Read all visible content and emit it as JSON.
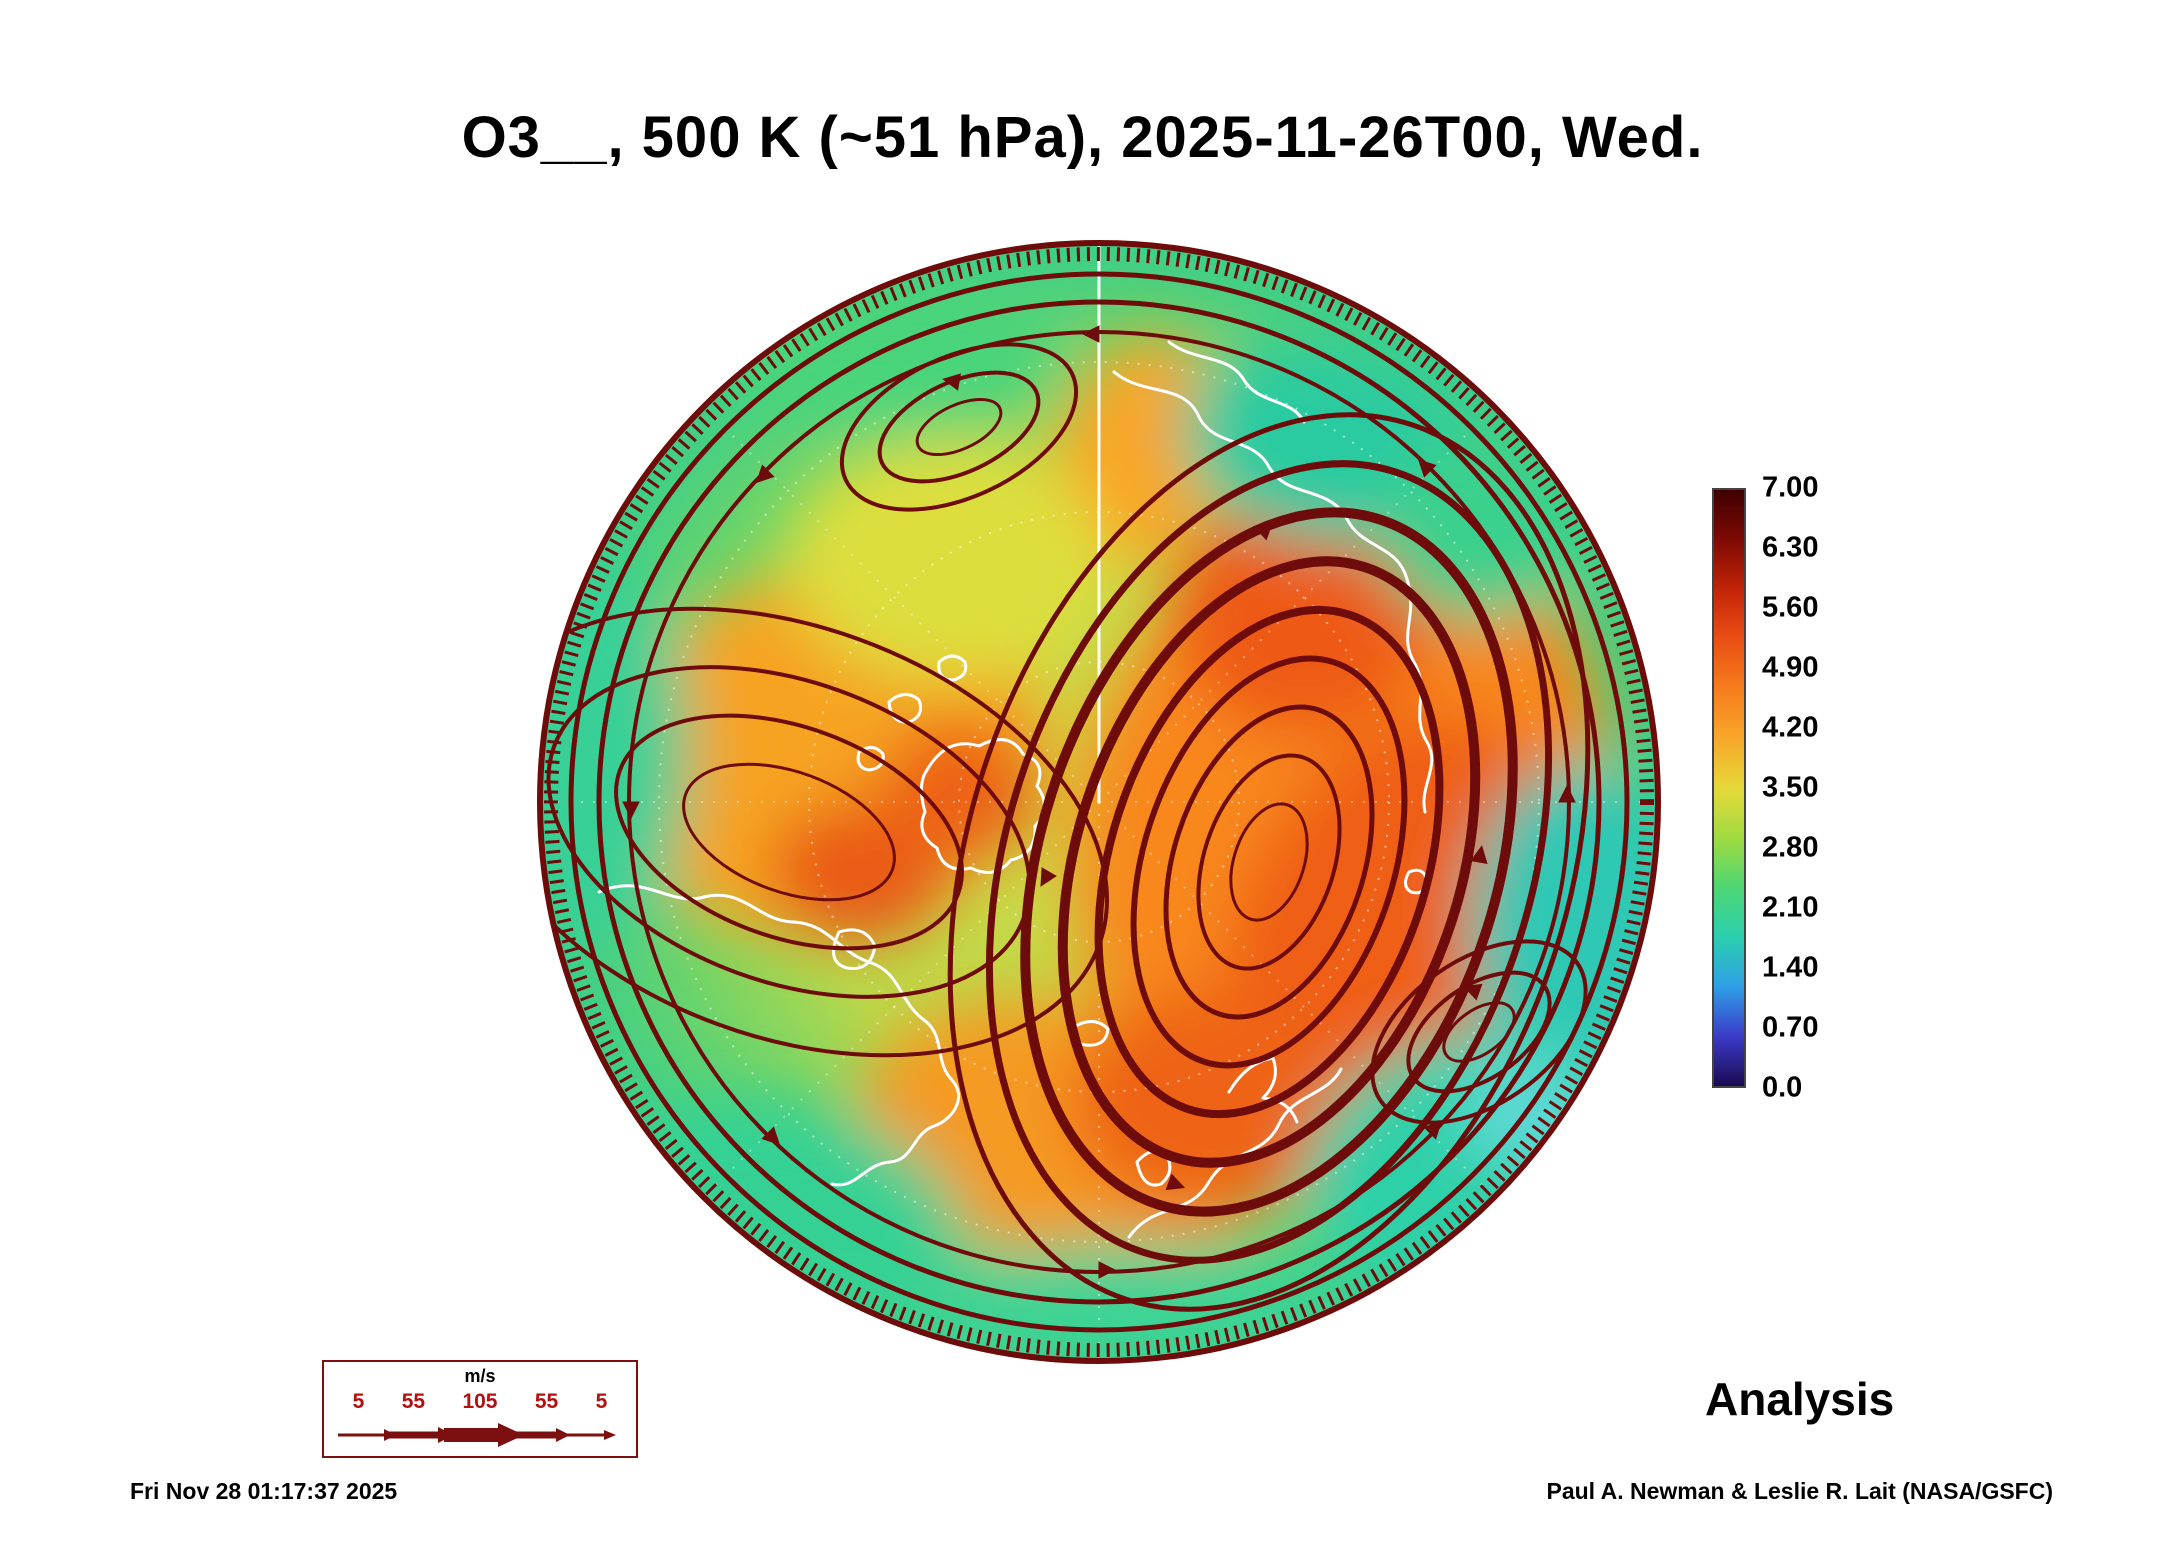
{
  "title": "O3__, 500 K (~51 hPa), 2025-11-26T00, Wed.",
  "footer": {
    "timestamp": "Fri Nov 28 01:17:37 2025",
    "credit": "Paul A. Newman & Leslie R. Lait (NASA/GSFC)",
    "analysis_label": "Analysis"
  },
  "colorbar": {
    "ticks": [
      "7.00",
      "6.30",
      "5.60",
      "4.90",
      "4.20",
      "3.50",
      "2.80",
      "2.10",
      "1.40",
      "0.70",
      "0.0"
    ],
    "colors_top_to_bottom": [
      "#3f0000",
      "#7e0a04",
      "#c22408",
      "#ea4f14",
      "#f67d1d",
      "#f8a72a",
      "#e6d93a",
      "#a0db40",
      "#4ed673",
      "#2bcfae",
      "#2f9fe6",
      "#3b3bc8",
      "#1c0a52"
    ]
  },
  "wind_legend": {
    "units": "m/s",
    "speeds": [
      "5",
      "55",
      "105",
      "55",
      "5"
    ],
    "color": "#7c0f0f"
  },
  "map": {
    "streamline_color": "#6e0b0b",
    "coastline_color": "#ffffff"
  },
  "chart_data": {
    "type": "heatmap",
    "title": "O3__, 500 K (~51 hPa), 2025-11-26T00, Wed.",
    "field": "O3 mixing ratio",
    "isentropic_level": "500 K (~51 hPa)",
    "valid_time": "2025-11-26T00 (Wed)",
    "projection": "north polar stereographic (Northern Hemisphere)",
    "colorbar_range": [
      0.0,
      7.0
    ],
    "colorbar_ticks": [
      7.0,
      6.3,
      5.6,
      4.9,
      4.2,
      3.5,
      2.8,
      2.1,
      1.4,
      0.7,
      0.0
    ],
    "overlay": "wind streamlines, line thickness scaled by speed (m/s)",
    "wind_speed_scale_mps": [
      5,
      55,
      105,
      55,
      5
    ],
    "product": "Analysis",
    "notable_features": "polar vortex displaced toward Eurasia with high O3 (4.5-6) collar over Siberia/Europe and N. America; low O3 (2-3.5) over lower latitudes and anticyclone regions"
  }
}
